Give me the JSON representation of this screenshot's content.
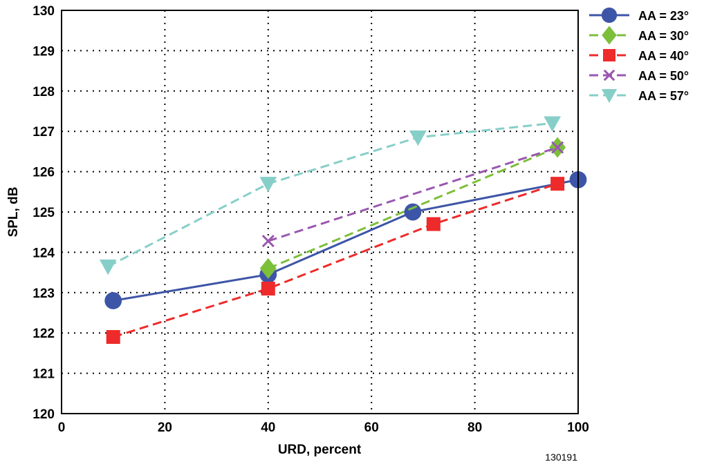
{
  "figure_id": "130191",
  "chart_data": {
    "type": "line",
    "xlabel": "URD, percent",
    "ylabel": "SPL, dB",
    "xlim": [
      0,
      100
    ],
    "ylim": [
      120,
      130
    ],
    "xticks": [
      "0",
      "20",
      "40",
      "60",
      "80",
      "100"
    ],
    "yticks": [
      "120",
      "121",
      "122",
      "123",
      "124",
      "125",
      "126",
      "127",
      "128",
      "129",
      "130"
    ],
    "grid": true,
    "legend_position": "right",
    "series": [
      {
        "name": "AA = 23°",
        "color": "#3d55a6",
        "marker": "circle",
        "line": "solid",
        "points": [
          [
            10,
            122.8
          ],
          [
            40,
            123.45
          ],
          [
            68,
            125.0
          ],
          [
            100,
            125.8
          ]
        ]
      },
      {
        "name": "AA = 30°",
        "color": "#7cbf3a",
        "marker": "diamond",
        "line": "dashed",
        "points": [
          [
            40,
            123.6
          ],
          [
            96,
            126.6
          ]
        ]
      },
      {
        "name": "AA = 40°",
        "color": "#ee2a2a",
        "marker": "square",
        "line": "dashed",
        "points": [
          [
            10,
            121.9
          ],
          [
            40,
            123.1
          ],
          [
            72,
            124.7
          ],
          [
            96,
            125.7
          ]
        ]
      },
      {
        "name": "AA = 50°",
        "color": "#9a57b0",
        "marker": "x",
        "line": "dashed",
        "points": [
          [
            40,
            124.28
          ],
          [
            96,
            126.6
          ]
        ]
      },
      {
        "name": "AA = 57°",
        "color": "#86cfc8",
        "marker": "triangle-down",
        "line": "dashed",
        "points": [
          [
            9,
            123.65
          ],
          [
            40,
            125.7
          ],
          [
            69,
            126.85
          ],
          [
            95,
            127.2
          ]
        ]
      }
    ]
  }
}
